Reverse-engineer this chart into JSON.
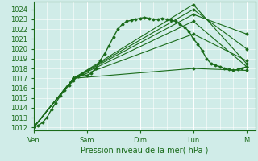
{
  "xlabel": "Pression niveau de la mer( hPa )",
  "bg_color": "#d0ece8",
  "grid_color": "#b0d8d0",
  "line_color": "#1a6b1a",
  "ylim": [
    1012,
    1024.5
  ],
  "yticks": [
    1012,
    1013,
    1014,
    1015,
    1016,
    1017,
    1018,
    1019,
    1020,
    1021,
    1022,
    1023,
    1024
  ],
  "day_labels": [
    "Ven",
    "Sam",
    "Dim",
    "Lun",
    "M"
  ],
  "day_positions": [
    0,
    24,
    48,
    72,
    96
  ],
  "total_hours": 100,
  "series": [
    {
      "x": [
        0,
        2,
        4,
        6,
        8,
        10,
        12,
        14,
        16,
        18,
        20,
        22,
        24,
        26,
        28,
        30,
        32,
        34,
        36,
        38,
        40,
        42,
        44,
        46,
        48,
        50,
        52,
        54,
        56,
        58,
        60,
        62,
        64,
        66,
        68,
        70,
        72,
        74,
        76,
        78,
        80,
        82,
        84,
        86,
        88,
        90,
        92,
        94,
        96
      ],
      "y": [
        1012.0,
        1012.2,
        1012.5,
        1013.0,
        1013.8,
        1014.5,
        1015.2,
        1015.8,
        1016.3,
        1016.8,
        1017.2,
        1017.4,
        1017.3,
        1017.5,
        1018.0,
        1018.8,
        1019.5,
        1020.3,
        1021.2,
        1022.0,
        1022.5,
        1022.8,
        1022.9,
        1023.0,
        1023.1,
        1023.2,
        1023.1,
        1023.0,
        1023.0,
        1023.1,
        1023.0,
        1022.9,
        1022.8,
        1022.5,
        1022.2,
        1021.8,
        1021.0,
        1020.5,
        1019.8,
        1019.0,
        1018.5,
        1018.3,
        1018.2,
        1018.0,
        1017.9,
        1017.8,
        1017.9,
        1018.0,
        1018.2
      ],
      "style": "solid",
      "marker": "D",
      "ms": 1.5,
      "lw": 1.0
    },
    {
      "x": [
        0,
        18,
        72,
        96
      ],
      "y": [
        1012.0,
        1017.0,
        1024.5,
        1018.5
      ],
      "style": "solid",
      "marker": "D",
      "ms": 1.5,
      "lw": 0.8
    },
    {
      "x": [
        0,
        18,
        72,
        96
      ],
      "y": [
        1012.0,
        1017.0,
        1024.0,
        1020.0
      ],
      "style": "solid",
      "marker": "D",
      "ms": 1.5,
      "lw": 0.8
    },
    {
      "x": [
        0,
        18,
        72,
        96
      ],
      "y": [
        1012.0,
        1017.0,
        1023.5,
        1021.5
      ],
      "style": "solid",
      "marker": "D",
      "ms": 1.5,
      "lw": 0.8
    },
    {
      "x": [
        0,
        18,
        72,
        96
      ],
      "y": [
        1012.0,
        1017.0,
        1022.8,
        1018.2
      ],
      "style": "solid",
      "marker": "D",
      "ms": 1.5,
      "lw": 0.8
    },
    {
      "x": [
        0,
        18,
        72,
        96
      ],
      "y": [
        1012.0,
        1017.0,
        1021.5,
        1018.8
      ],
      "style": "solid",
      "marker": "D",
      "ms": 1.5,
      "lw": 0.8
    },
    {
      "x": [
        0,
        18,
        72,
        96
      ],
      "y": [
        1012.0,
        1017.0,
        1018.0,
        1017.8
      ],
      "style": "solid",
      "marker": "D",
      "ms": 1.5,
      "lw": 0.8
    }
  ]
}
